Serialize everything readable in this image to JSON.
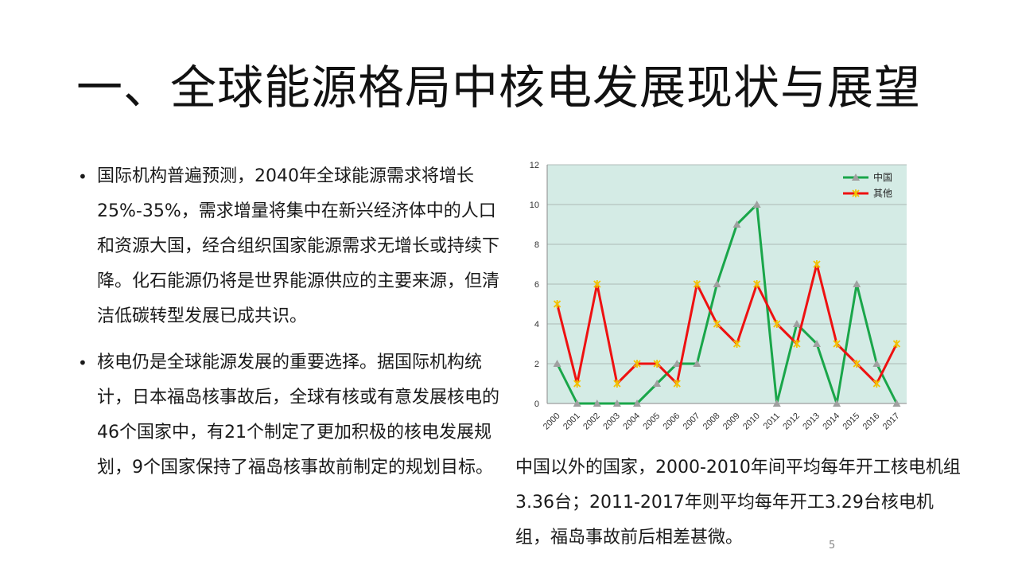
{
  "slide": {
    "title": "一、全球能源格局中核电发展现状与展望",
    "bullets": [
      "国际机构普遍预测，2040年全球能源需求将增长25%-35%，需求增量将集中在新兴经济体中的人口和资源大国，经合组织国家能源需求无增长或持续下降。化石能源仍将是世界能源供应的主要来源，但清洁低碳转型发展已成共识。",
      "核电仍是全球能源发展的重要选择。据国际机构统计，日本福岛核事故后，全球有核或有意发展核电的46个国家中，有21个制定了更加积极的核电发展规划，9个国家保持了福岛核事故前制定的规划目标。"
    ],
    "caption": "中国以外的国家，2000-2010年间平均每年开工核电机组3.36台；2011-2017年则平均每年开工3.29台核电机组，福岛事故前后相差甚微。",
    "page_number": "5"
  },
  "chart_data": {
    "type": "line",
    "x": [
      "2000",
      "2001",
      "2002",
      "2003",
      "2004",
      "2005",
      "2006",
      "2007",
      "2008",
      "2009",
      "2010",
      "2011",
      "2012",
      "2013",
      "2014",
      "2015",
      "2016",
      "2017"
    ],
    "series": [
      {
        "name": "中国",
        "color": "#1aa64a",
        "marker": "triangle",
        "values": [
          2,
          0,
          0,
          0,
          0,
          1,
          2,
          2,
          6,
          9,
          10,
          0,
          4,
          3,
          0,
          6,
          2,
          0
        ]
      },
      {
        "name": "其他",
        "color": "#ee1111",
        "marker": "cross",
        "values": [
          5,
          1,
          6,
          1,
          2,
          2,
          1,
          6,
          4,
          3,
          6,
          4,
          3,
          7,
          3,
          2,
          1,
          3
        ]
      }
    ],
    "ylim": [
      0,
      12
    ],
    "yticks": [
      "0",
      "2",
      "4",
      "6",
      "8",
      "10",
      "12"
    ],
    "grid": true,
    "plot_background": "#d4ebe5",
    "legend_position": "top-right"
  }
}
